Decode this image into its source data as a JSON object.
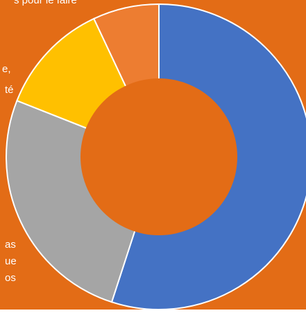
{
  "colors": {
    "background": "#E36C16",
    "hole": "#E36C16",
    "slice_border": "#FFFFFF",
    "text": "#FFFFFF"
  },
  "chart_data": {
    "type": "pie",
    "variant": "donut",
    "title": "",
    "start_angle_deg": 0,
    "direction": "clockwise",
    "grid": false,
    "legend": "none",
    "slices": [
      {
        "value": 55,
        "color": "#4472C4"
      },
      {
        "value": 26,
        "color": "#A5A5A5"
      },
      {
        "value": 12,
        "color": "#FFC000"
      },
      {
        "value": 7,
        "color": "#ED7D31"
      }
    ],
    "partial_labels": [
      "s pour le faire",
      "e,",
      "té",
      "as",
      "ue",
      "os"
    ]
  }
}
